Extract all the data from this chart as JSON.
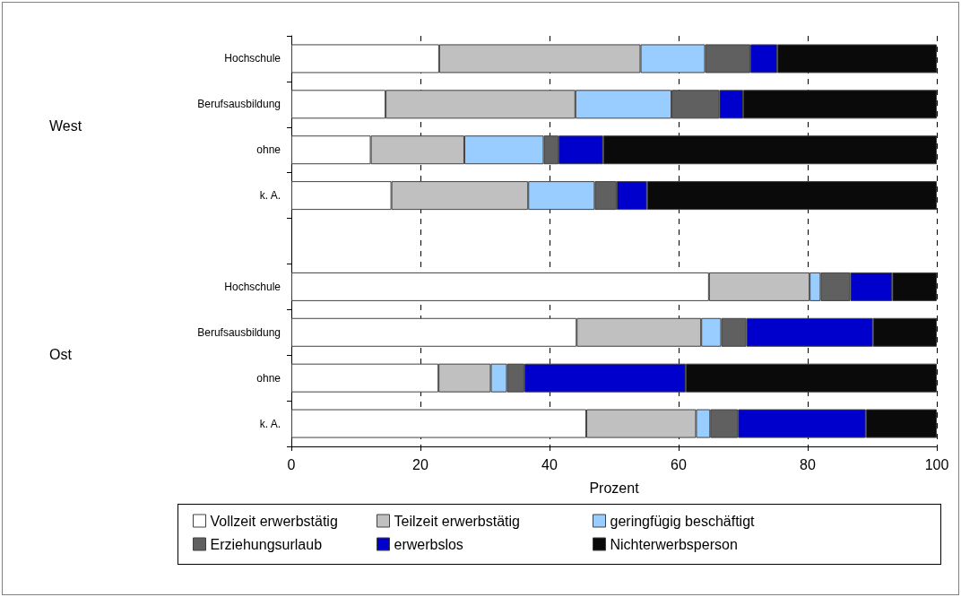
{
  "chart_data": {
    "type": "bar",
    "orientation": "horizontal",
    "stacked": true,
    "categories": [
      "Hochschule",
      "Berufsausbildung",
      "ohne",
      "k. A.",
      null,
      "Hochschule",
      "Berufsausbildung",
      "ohne",
      "k. A."
    ],
    "series": [
      {
        "name": "Vollzeit erwerbstätig",
        "color": "#ffffff",
        "values": [
          22.9,
          14.6,
          12.3,
          15.5,
          null,
          64.7,
          44.2,
          22.8,
          45.7
        ]
      },
      {
        "name": "Teilzeit erwerbstätig",
        "color": "#c0c0c0",
        "values": [
          31.2,
          29.4,
          14.5,
          21.2,
          null,
          15.6,
          19.3,
          8.1,
          17.0
        ]
      },
      {
        "name": "geringfügig beschäftigt",
        "color": "#99ccff",
        "values": [
          10.0,
          14.9,
          12.3,
          10.3,
          null,
          1.7,
          3.1,
          2.5,
          2.2
        ]
      },
      {
        "name": "Erziehungsurlaub",
        "color": "#606060",
        "values": [
          7.0,
          7.4,
          2.3,
          3.4,
          null,
          4.6,
          3.9,
          2.7,
          4.3
        ]
      },
      {
        "name": "erwerbslos",
        "color": "#0000cc",
        "values": [
          4.2,
          3.7,
          6.9,
          4.7,
          null,
          6.5,
          19.6,
          25.0,
          19.8
        ]
      },
      {
        "name": "Nichterwerbsperson",
        "color": "#0a0a0a",
        "values": [
          24.7,
          30.0,
          51.7,
          44.9,
          null,
          6.9,
          9.9,
          38.9,
          11.0
        ]
      }
    ],
    "xlabel": "Prozent",
    "xlim": [
      0,
      100
    ],
    "xticks": [
      0,
      20,
      40,
      60,
      80,
      100
    ],
    "grid": "x",
    "legend": "bottom",
    "annotations": [
      "West",
      "Ost"
    ]
  }
}
